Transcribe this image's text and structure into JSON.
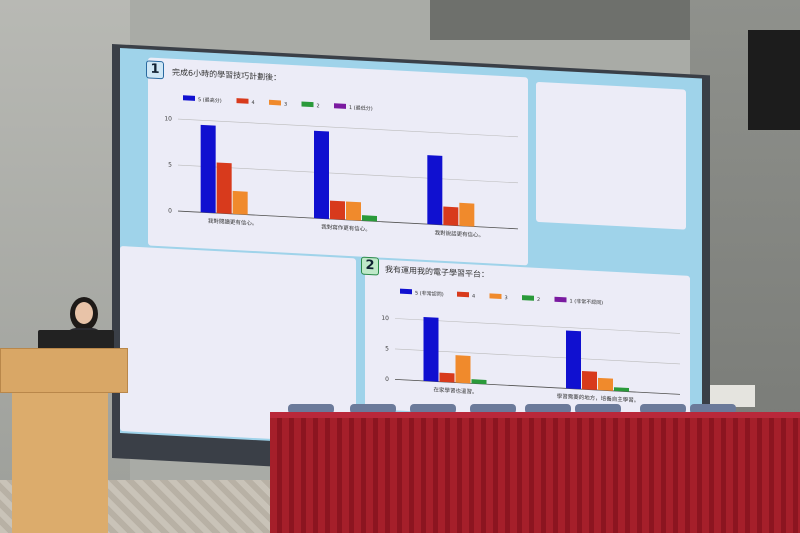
{
  "scene": "conference room presentation",
  "slide": {
    "panel_1": {
      "number": "1",
      "title": "完成6小時的學習技巧計劃後："
    },
    "panel_2": {
      "number": "2",
      "title": "我有運用我的電子學習平台："
    }
  },
  "colors": {
    "s5": "#1010d0",
    "s4": "#d83a1c",
    "s3": "#f08a2c",
    "s2": "#2a9a3a",
    "s1": "#7a1aa0",
    "screen_bg": "#9fd3ea",
    "tablecloth": "#a51f2a"
  },
  "chart_data": [
    {
      "type": "bar",
      "title": "完成6小時的學習技巧計劃後：",
      "categories": [
        "我對閱讀更有信心。",
        "我對寫作更有信心。",
        "我對說話更有信心。"
      ],
      "yticks": [
        "0",
        "5",
        "10"
      ],
      "ylim": [
        0,
        10
      ],
      "grid": true,
      "legend": "top-left",
      "series": [
        {
          "name": "5 (最高分)",
          "values": [
            9.5,
            9.5,
            7.5
          ]
        },
        {
          "name": "4",
          "values": [
            5.5,
            2,
            2
          ]
        },
        {
          "name": "3",
          "values": [
            2.5,
            2,
            2.5
          ]
        },
        {
          "name": "2",
          "values": [
            0,
            0.6,
            0
          ]
        },
        {
          "name": "1 (最低分)",
          "values": [
            0,
            0,
            0
          ]
        }
      ]
    },
    {
      "type": "bar",
      "title": "我有運用我的電子學習平台：",
      "categories": [
        "在家學習也溫習。",
        "學習需要的地方，培養自主學習。"
      ],
      "yticks": [
        "0",
        "5",
        "10"
      ],
      "ylim": [
        0,
        11
      ],
      "grid": true,
      "legend": "top-left",
      "series": [
        {
          "name": "5 (非常認同)",
          "values": [
            10.5,
            9.5
          ]
        },
        {
          "name": "4",
          "values": [
            1.5,
            3
          ]
        },
        {
          "name": "3",
          "values": [
            4.5,
            2
          ]
        },
        {
          "name": "2",
          "values": [
            0.7,
            0.6
          ]
        },
        {
          "name": "1 (非常不認同)",
          "values": [
            0,
            0
          ]
        }
      ]
    }
  ]
}
